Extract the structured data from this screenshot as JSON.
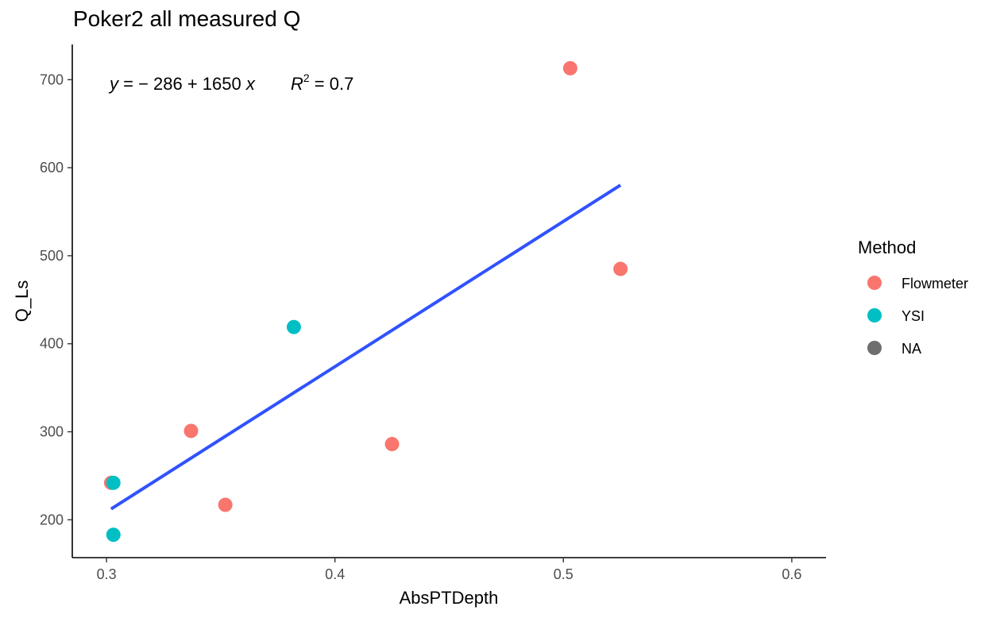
{
  "chart_data": {
    "type": "scatter",
    "title": "Poker2 all measured Q",
    "xlabel": "AbsPTDepth",
    "ylabel": "Q_Ls",
    "xlim": [
      0.285,
      0.615
    ],
    "ylim": [
      157,
      740
    ],
    "xticks": [
      0.3,
      0.4,
      0.5,
      0.6
    ],
    "xtick_labels": [
      "0.3",
      "0.4",
      "0.5",
      "0.6"
    ],
    "yticks": [
      200,
      300,
      400,
      500,
      600,
      700
    ],
    "ytick_labels": [
      "200",
      "300",
      "400",
      "500",
      "600",
      "700"
    ],
    "grid": false,
    "legend": {
      "title": "Method",
      "placement": "right",
      "entries": [
        {
          "label": "Flowmeter",
          "color": "#F8766D"
        },
        {
          "label": "YSI",
          "color": "#00BFC4"
        },
        {
          "label": "NA",
          "color": "#6E6E6E"
        }
      ]
    },
    "series": [
      {
        "name": "Flowmeter",
        "color": "#F8766D",
        "points": [
          [
            0.302,
            242
          ],
          [
            0.337,
            301
          ],
          [
            0.352,
            217
          ],
          [
            0.425,
            286
          ],
          [
            0.503,
            713
          ],
          [
            0.525,
            485
          ]
        ]
      },
      {
        "name": "YSI",
        "color": "#00BFC4",
        "points": [
          [
            0.303,
            242
          ],
          [
            0.303,
            183
          ],
          [
            0.382,
            419
          ]
        ]
      }
    ],
    "fit_line": {
      "color": "#3052FF",
      "intercept": -286,
      "slope": 1650,
      "x_range": [
        0.302,
        0.525
      ]
    },
    "annotation": {
      "equation": {
        "y": "y",
        "eq": " = − 286 + 1650 ",
        "x": "x"
      },
      "r2": {
        "R": "R",
        "sup": "2",
        "value": " = 0.7"
      }
    }
  }
}
